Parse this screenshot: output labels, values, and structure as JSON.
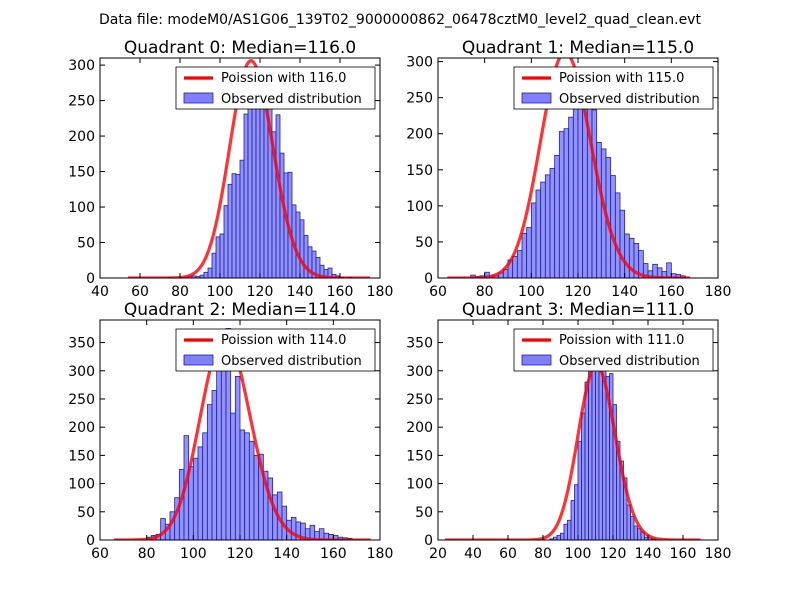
{
  "suptitle": "Data file: modeM0/AS1G06_139T02_9000000862_06478cztM0_level2_quad_clean.evt",
  "colors": {
    "bar_fill": "#7f7fff",
    "bar_edge": "#1f1f9a",
    "curve": "#ff0000",
    "axis": "#000000"
  },
  "chart_data": [
    {
      "type": "bar",
      "title": "Quadrant 0: Median=116.0",
      "xlim": [
        40,
        180
      ],
      "ylim": [
        0,
        310
      ],
      "xticks": [
        40,
        60,
        80,
        100,
        120,
        140,
        160,
        180
      ],
      "yticks": [
        0,
        50,
        100,
        150,
        200,
        250,
        300
      ],
      "legend": {
        "position": "top-right",
        "entries": [
          "Poission with 116.0",
          "Observed distribution"
        ]
      },
      "poisson_mean": 116.0,
      "curve_x": [
        54,
        175
      ],
      "bin_start": 74,
      "bin_width": 2,
      "values": [
        1,
        0,
        0,
        1,
        1,
        2,
        3,
        2,
        4,
        8,
        14,
        35,
        58,
        62,
        102,
        132,
        147,
        146,
        166,
        231,
        244,
        278,
        254,
        297,
        275,
        256,
        206,
        230,
        176,
        148,
        149,
        103,
        93,
        82,
        60,
        44,
        38,
        29,
        18,
        12,
        14,
        5,
        3,
        1,
        0,
        1
      ]
    },
    {
      "type": "bar",
      "title": "Quadrant 1: Median=115.0",
      "xlim": [
        60,
        180
      ],
      "ylim": [
        0,
        305
      ],
      "xticks": [
        60,
        80,
        100,
        120,
        140,
        160,
        180
      ],
      "yticks": [
        0,
        50,
        100,
        150,
        200,
        250,
        300
      ],
      "legend": {
        "position": "top-right",
        "entries": [
          "Poission with 115.0",
          "Observed distribution"
        ]
      },
      "poisson_mean": 115.0,
      "curve_x": [
        64,
        168
      ],
      "bin_start": 74,
      "bin_width": 2,
      "values": [
        4,
        2,
        3,
        8,
        3,
        3,
        7,
        12,
        25,
        30,
        38,
        62,
        70,
        104,
        122,
        133,
        143,
        152,
        170,
        203,
        207,
        223,
        260,
        289,
        258,
        242,
        233,
        188,
        179,
        167,
        142,
        118,
        94,
        61,
        55,
        48,
        38,
        20,
        10,
        19,
        14,
        9,
        21,
        6,
        5,
        3
      ]
    },
    {
      "type": "bar",
      "title": "Quadrant 2: Median=114.0",
      "xlim": [
        60,
        180
      ],
      "ylim": [
        0,
        390
      ],
      "xticks": [
        60,
        80,
        100,
        120,
        140,
        160,
        180
      ],
      "yticks": [
        0,
        50,
        100,
        150,
        200,
        250,
        300,
        350
      ],
      "legend": {
        "position": "top-right",
        "entries": [
          "Poission with 114.0",
          "Observed distribution"
        ]
      },
      "poisson_mean": 114.0,
      "curve_x": [
        66,
        176
      ],
      "bin_start": 80,
      "bin_width": 2,
      "values": [
        5,
        8,
        10,
        38,
        28,
        50,
        75,
        125,
        185,
        130,
        145,
        165,
        190,
        240,
        265,
        365,
        340,
        375,
        225,
        290,
        195,
        190,
        175,
        150,
        152,
        122,
        110,
        80,
        85,
        60,
        35,
        40,
        32,
        30,
        20,
        26,
        15,
        20,
        12,
        10,
        8,
        5,
        4,
        3
      ]
    },
    {
      "type": "bar",
      "title": "Quadrant 3: Median=111.0",
      "xlim": [
        20,
        180
      ],
      "ylim": [
        0,
        390
      ],
      "xticks": [
        20,
        40,
        60,
        80,
        100,
        120,
        140,
        160,
        180
      ],
      "yticks": [
        0,
        50,
        100,
        150,
        200,
        250,
        300,
        350
      ],
      "legend": {
        "position": "top-right",
        "entries": [
          "Poission with 111.0",
          "Observed distribution"
        ]
      },
      "poisson_mean": 111.0,
      "curve_x": [
        24,
        170
      ],
      "bin_start": 84,
      "bin_width": 2,
      "values": [
        2,
        5,
        8,
        12,
        28,
        35,
        70,
        98,
        175,
        225,
        280,
        330,
        330,
        360,
        370,
        340,
        290,
        295,
        240,
        175,
        140,
        110,
        62,
        42,
        25,
        20,
        14,
        5,
        4,
        2
      ]
    }
  ]
}
